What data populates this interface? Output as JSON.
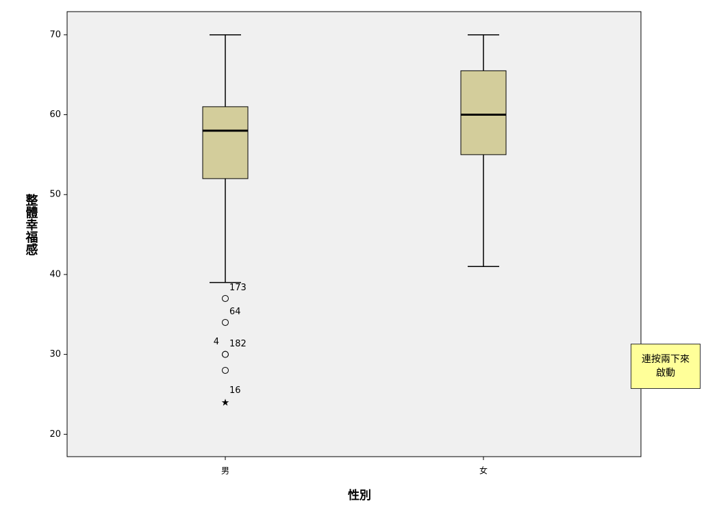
{
  "chart_data": {
    "type": "boxplot",
    "x_label": "性別",
    "y_label": "整體幸福感",
    "categories": [
      "男",
      "女"
    ],
    "boxes": [
      {
        "min": 39,
        "q1": 52,
        "median": 58,
        "q3": 61,
        "max": 70,
        "outliers": [
          37,
          34,
          30,
          30,
          28
        ],
        "outlier_labels": [
          "173",
          "64",
          "182",
          "4",
          null
        ],
        "extremes": [
          24
        ],
        "extreme_labels": [
          "16"
        ]
      },
      {
        "min": 41,
        "q1": 55,
        "median": 60,
        "q3": 65.5,
        "max": 70,
        "outliers": [],
        "outlier_labels": [],
        "extremes": [],
        "extreme_labels": []
      }
    ],
    "color": "#d3cd9b",
    "plot_background": "#f0f0f0",
    "ylim": [
      17.2,
      72.9
    ],
    "yticks": [
      20,
      30,
      40,
      50,
      60,
      70
    ]
  },
  "tooltip": {
    "lines": [
      "連按兩下來",
      "啟動"
    ]
  }
}
